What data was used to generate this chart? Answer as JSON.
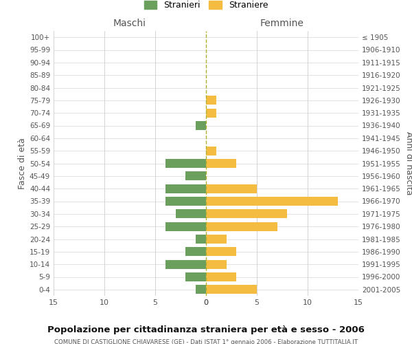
{
  "age_groups": [
    "100+",
    "95-99",
    "90-94",
    "85-89",
    "80-84",
    "75-79",
    "70-74",
    "65-69",
    "60-64",
    "55-59",
    "50-54",
    "45-49",
    "40-44",
    "35-39",
    "30-34",
    "25-29",
    "20-24",
    "15-19",
    "10-14",
    "5-9",
    "0-4"
  ],
  "birth_years": [
    "≤ 1905",
    "1906-1910",
    "1911-1915",
    "1916-1920",
    "1921-1925",
    "1926-1930",
    "1931-1935",
    "1936-1940",
    "1941-1945",
    "1946-1950",
    "1951-1955",
    "1956-1960",
    "1961-1965",
    "1966-1970",
    "1971-1975",
    "1976-1980",
    "1981-1985",
    "1986-1990",
    "1991-1995",
    "1996-2000",
    "2001-2005"
  ],
  "maschi": [
    0,
    0,
    0,
    0,
    0,
    0,
    0,
    1,
    0,
    0,
    4,
    2,
    4,
    4,
    3,
    4,
    1,
    2,
    4,
    2,
    1
  ],
  "femmine": [
    0,
    0,
    0,
    0,
    0,
    1,
    1,
    0,
    0,
    1,
    3,
    0,
    5,
    13,
    8,
    7,
    2,
    3,
    2,
    3,
    5
  ],
  "maschi_color": "#6a9f5e",
  "femmine_color": "#f5bc42",
  "background_color": "#ffffff",
  "grid_color": "#cccccc",
  "title": "Popolazione per cittadinanza straniera per età e sesso - 2006",
  "subtitle": "COMUNE DI CASTIGLIONE CHIAVARESE (GE) - Dati ISTAT 1° gennaio 2006 - Elaborazione TUTTITALIA.IT",
  "xlabel_left": "Maschi",
  "xlabel_right": "Femmine",
  "ylabel_left": "Fasce di età",
  "ylabel_right": "Anni di nascita",
  "legend_maschi": "Stranieri",
  "legend_femmine": "Straniere",
  "xlim": 15,
  "dashed_line_color": "#b0b030"
}
